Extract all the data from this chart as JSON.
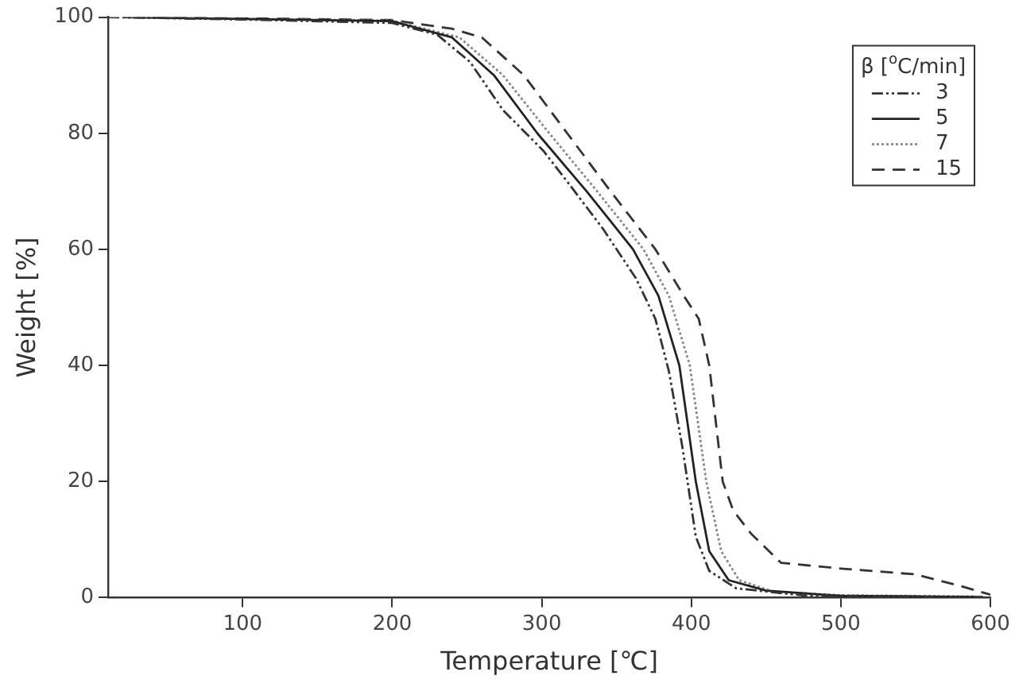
{
  "chart_data": {
    "type": "line",
    "xlabel": "Temperature [℃]",
    "ylabel": "Weight [%]",
    "legend_title": "β [$^{o}$C/min]",
    "legend": "top right",
    "grid": false,
    "marker": "none",
    "xlim": [
      10,
      600
    ],
    "xticks": [
      100,
      200,
      300,
      400,
      500,
      600
    ],
    "ylim": [
      0,
      100
    ],
    "yticks": [
      0,
      20,
      40,
      60,
      80,
      100
    ],
    "series": [
      {
        "name": "3",
        "color": "#333333",
        "line_style": "dashdot",
        "x": [
          10,
          100,
          200,
          230,
          252,
          274,
          301,
          319,
          341,
          363,
          376,
          385,
          394,
          403,
          412,
          430,
          474,
          550,
          600
        ],
        "values": [
          100,
          99.6,
          99,
          97,
          92.3,
          84,
          77,
          71,
          63.5,
          55,
          48,
          39,
          26,
          10.5,
          4.6,
          1.6,
          0.4,
          0.2,
          0
        ]
      },
      {
        "name": "5",
        "color": "#222222",
        "line_style": "solid",
        "x": [
          20,
          100,
          200,
          240,
          268,
          297,
          330,
          361,
          378,
          392,
          403,
          412,
          425,
          450,
          500,
          595
        ],
        "values": [
          100,
          99.7,
          99.3,
          96.5,
          90,
          80,
          70,
          60,
          52,
          40,
          20,
          8,
          3,
          1.2,
          0.3,
          0.1
        ]
      },
      {
        "name": "7",
        "color": "#888888",
        "line_style": "dotted",
        "x": [
          30,
          100,
          200,
          245,
          274,
          305,
          337,
          368,
          385,
          399,
          410,
          420,
          432,
          455,
          500,
          590
        ],
        "values": [
          99.9,
          99.7,
          99.4,
          96.5,
          90,
          80,
          70,
          60,
          52,
          40,
          20,
          8,
          3,
          1,
          0.4,
          0.2
        ]
      },
      {
        "name": "15",
        "color": "#333333",
        "line_style": "dashed",
        "x": [
          40,
          100,
          200,
          240,
          260,
          288,
          317,
          346,
          376,
          395,
          405,
          412,
          421,
          428,
          440,
          460,
          500,
          550,
          580,
          600
        ],
        "values": [
          100,
          99.8,
          99.5,
          98,
          96.5,
          90,
          80,
          70,
          60,
          52,
          48,
          40,
          20,
          15,
          11,
          6,
          5,
          4,
          2,
          0.5
        ]
      }
    ]
  }
}
